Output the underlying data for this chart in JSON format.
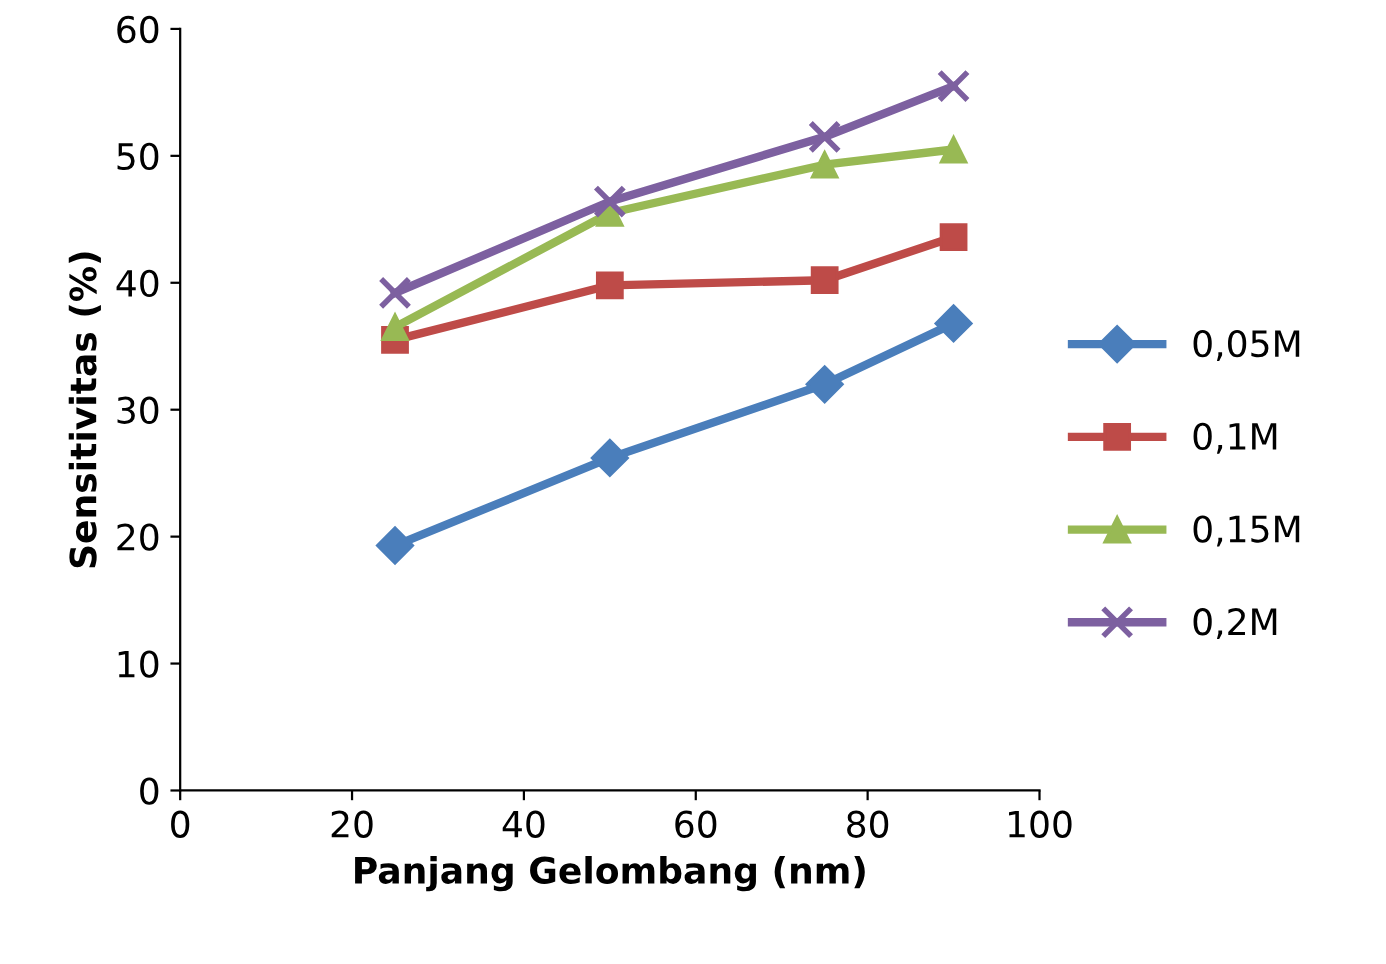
{
  "chart_data": {
    "type": "line",
    "xlabel": "Panjang Gelombang (nm)",
    "ylabel": "Sensitivitas (%)",
    "x": [
      25,
      50,
      75,
      90
    ],
    "series": [
      {
        "name": "0,05M",
        "color": "#4a7ebb",
        "marker": "diamond",
        "values": [
          19.3,
          26.2,
          32.0,
          36.8
        ]
      },
      {
        "name": "0,1M",
        "color": "#be4b48",
        "marker": "square",
        "values": [
          35.5,
          39.8,
          40.2,
          43.6
        ]
      },
      {
        "name": "0,15M",
        "color": "#98b954",
        "marker": "triangle",
        "values": [
          36.5,
          45.5,
          49.3,
          50.5
        ]
      },
      {
        "name": "0,2M",
        "color": "#7d60a0",
        "marker": "cross",
        "values": [
          39.2,
          46.4,
          51.5,
          55.5
        ]
      }
    ],
    "xlim": [
      0,
      100
    ],
    "xticks": [
      0,
      20,
      40,
      60,
      80,
      100
    ],
    "ylim": [
      0,
      60
    ],
    "yticks": [
      0,
      10,
      20,
      30,
      40,
      50,
      60
    ],
    "grid": false,
    "legend": "right",
    "line_style": "solid"
  }
}
